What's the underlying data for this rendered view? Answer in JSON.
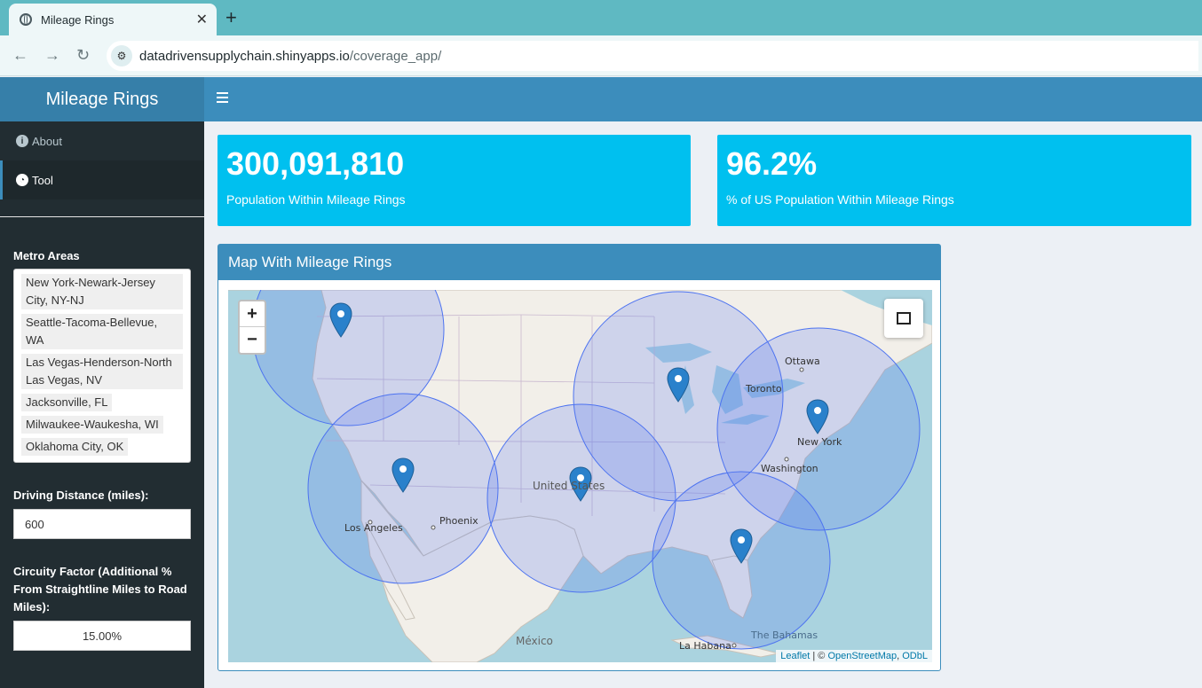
{
  "browser": {
    "tab_title": "Mileage Rings",
    "url_domain": "datadrivensupplychain.shinyapps.io",
    "url_path": "/coverage_app/"
  },
  "header": {
    "title": "Mileage Rings"
  },
  "sidebar": {
    "items": [
      {
        "label": "About",
        "icon": "info-icon"
      },
      {
        "label": "Tool",
        "icon": "dashboard-icon"
      }
    ],
    "metro_label": "Metro Areas",
    "metro_selected": [
      "New York-Newark-Jersey City, NY-NJ",
      "Seattle-Tacoma-Bellevue, WA",
      "Las Vegas-Henderson-North Las Vegas, NV",
      "Jacksonville, FL",
      "Milwaukee-Waukesha, WI",
      "Oklahoma City, OK"
    ],
    "distance_label": "Driving Distance (miles):",
    "distance_value": "600",
    "circuity_label": "Circuity Factor (Additional % From Straightline Miles to Road Miles):",
    "circuity_value": "15.00%"
  },
  "value_boxes": [
    {
      "value": "300,091,810",
      "subtitle": "Population Within Mileage Rings"
    },
    {
      "value": "96.2%",
      "subtitle": "% of US Population Within Mileage Rings"
    }
  ],
  "map": {
    "title": "Map With Mileage Rings",
    "zoom_in": "+",
    "zoom_out": "−",
    "labels": [
      "Ottawa",
      "Toronto",
      "New York",
      "Washington",
      "United States",
      "Phoenix",
      "Los Angeles",
      "México",
      "La Habana",
      "The Bahamas"
    ],
    "attribution_leaflet": "Leaflet",
    "attribution_sep": " | © ",
    "attribution_osm": "OpenStreetMap",
    "attribution_odbl": "ODbL",
    "ring_color": "#4d73f0",
    "marker_color": "#2a81cb"
  }
}
